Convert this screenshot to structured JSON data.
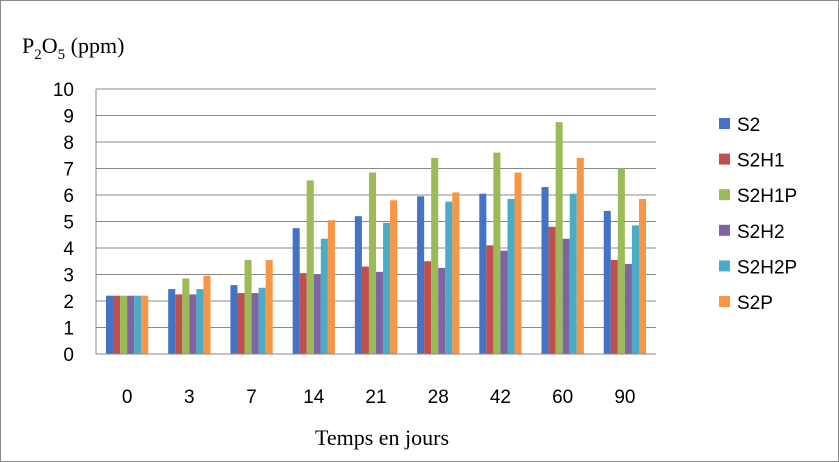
{
  "chart_data": {
    "type": "bar",
    "title": "",
    "ylabel_parts": {
      "base1": "P",
      "sub1": "2",
      "base2": "O",
      "sub2": "5",
      "rest": " (ppm)"
    },
    "xlabel": "Temps en jours",
    "ylim": [
      0,
      10
    ],
    "yticks": [
      "0",
      "1",
      "2",
      "3",
      "4",
      "5",
      "6",
      "7",
      "8",
      "9",
      "10"
    ],
    "grid": true,
    "legend_position": "right",
    "categories": [
      "0",
      "3",
      "7",
      "14",
      "21",
      "28",
      "42",
      "60",
      "90"
    ],
    "series": [
      {
        "name": "S2",
        "color": "#4472C4",
        "values": [
          2.2,
          2.45,
          2.6,
          4.75,
          5.2,
          5.95,
          6.05,
          6.3,
          5.4
        ]
      },
      {
        "name": "S2H1",
        "color": "#C0504D",
        "values": [
          2.2,
          2.25,
          2.3,
          3.05,
          3.3,
          3.5,
          4.1,
          4.8,
          3.55
        ]
      },
      {
        "name": "S2H1P",
        "color": "#9BBB59",
        "values": [
          2.2,
          2.85,
          3.55,
          6.55,
          6.85,
          7.4,
          7.6,
          8.75,
          7.0
        ]
      },
      {
        "name": "S2H2",
        "color": "#8064A2",
        "values": [
          2.2,
          2.25,
          2.3,
          3.0,
          3.1,
          3.25,
          3.9,
          4.35,
          3.4
        ]
      },
      {
        "name": "S2H2P",
        "color": "#4BACC6",
        "values": [
          2.2,
          2.45,
          2.5,
          4.35,
          4.95,
          5.75,
          5.85,
          6.05,
          4.85
        ]
      },
      {
        "name": "S2P",
        "color": "#F79646",
        "values": [
          2.2,
          2.95,
          3.55,
          5.05,
          5.8,
          6.1,
          6.85,
          7.4,
          5.85
        ]
      }
    ]
  }
}
